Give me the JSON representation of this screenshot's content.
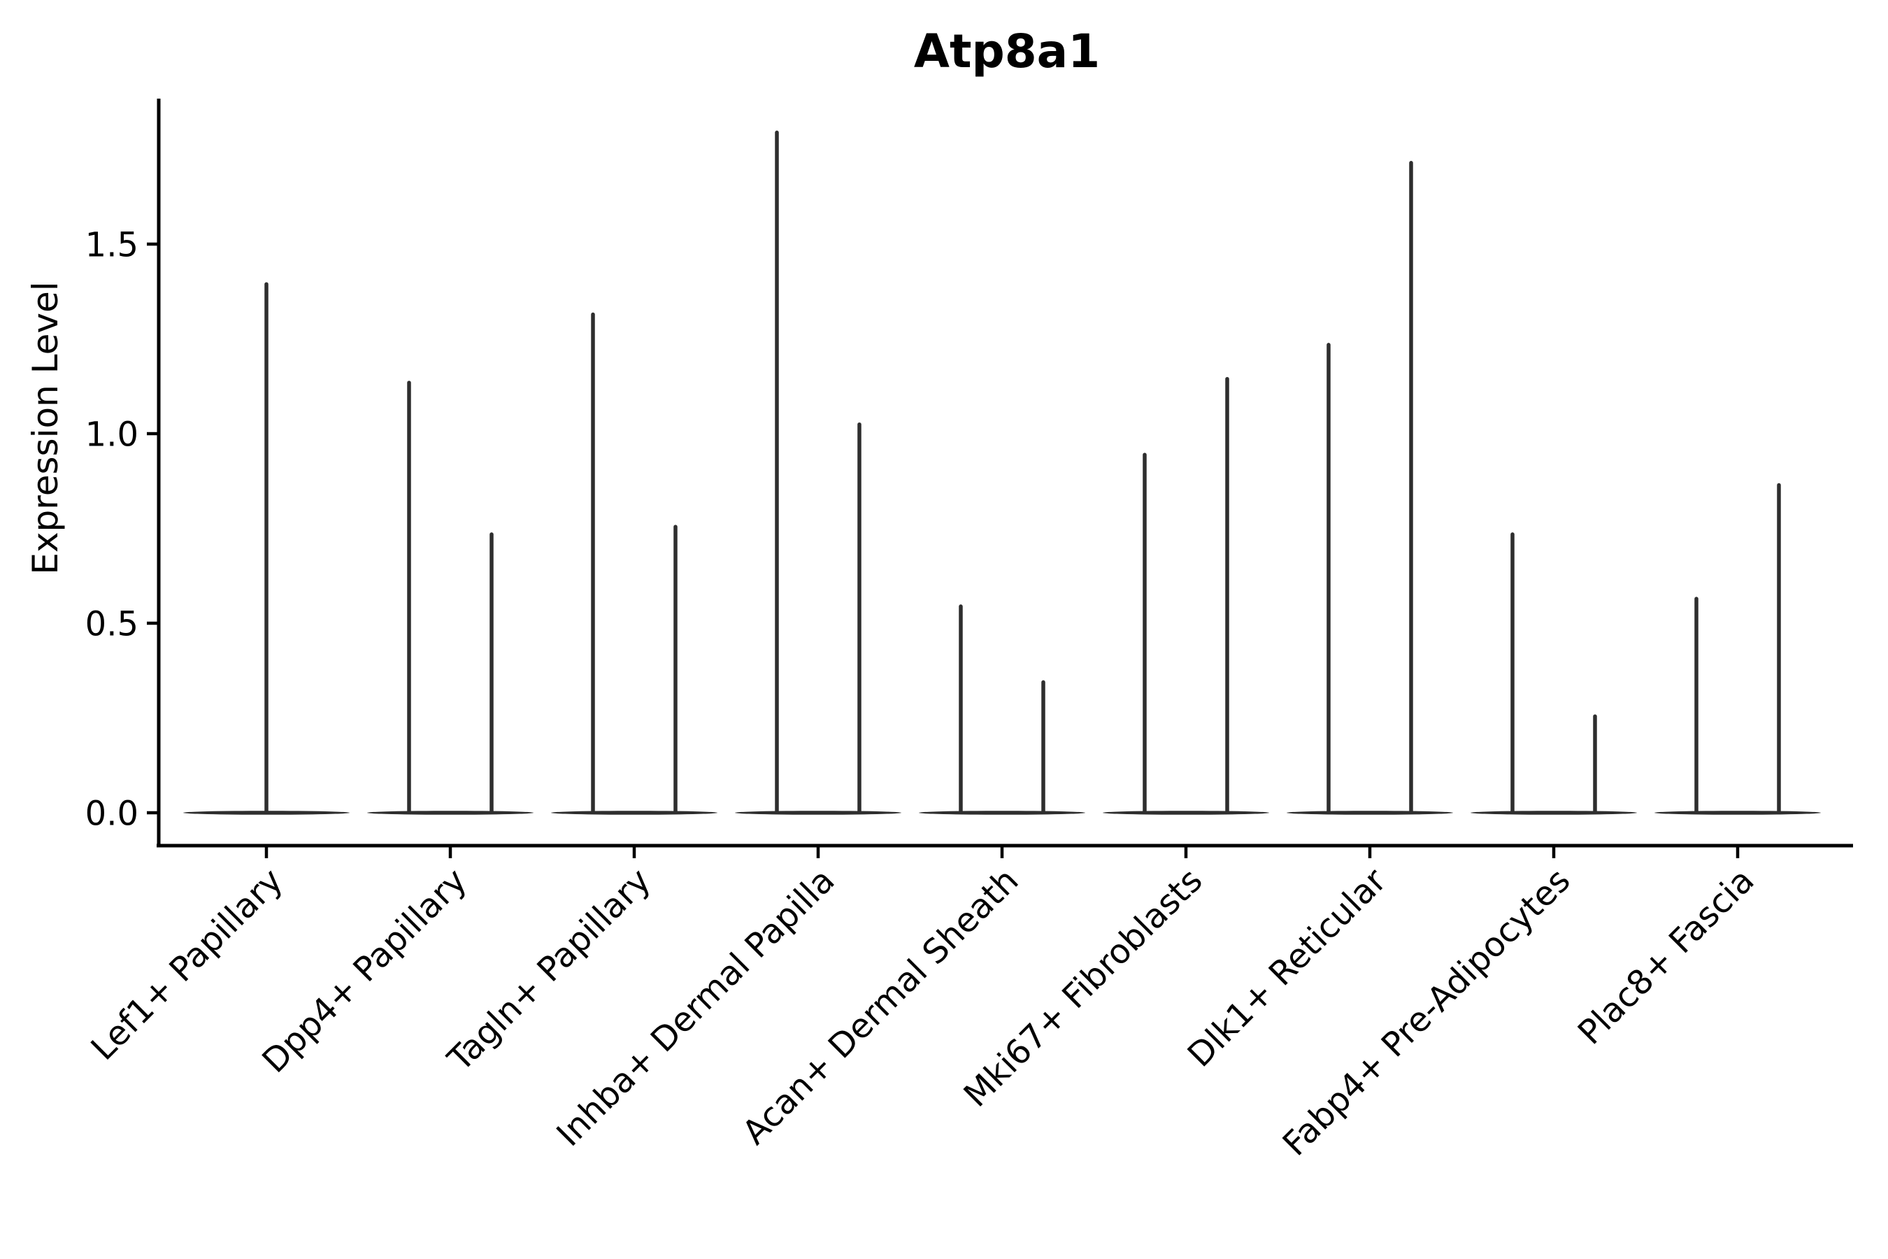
{
  "figure": {
    "background": "#ffffff"
  },
  "chart_data": {
    "type": "violin",
    "title": "Atp8a1",
    "xlabel": "",
    "ylabel": "Expression Level",
    "legend": "none",
    "grid": false,
    "ylim": [
      -0.09,
      1.88
    ],
    "yticks": [
      0,
      0.5,
      1,
      1.5
    ],
    "ytick_labels": [
      "0.0",
      "0.5",
      "1.0",
      "1.5"
    ],
    "categories": [
      "Lef1+ Papillary",
      "Dpp4+ Papillary",
      "Tagln+ Papillary",
      "Inhba+ Dermal Papilla",
      "Acan+ Dermal Sheath",
      "Mki67+ Fibroblasts",
      "Dlk1+ Reticular",
      "Fabp4+ Pre-Adipocytes",
      "Plac8+ Fascia"
    ],
    "violin_max_expression": [
      [
        1.4
      ],
      [
        1.14,
        0.74
      ],
      [
        1.32,
        0.76
      ],
      [
        1.8,
        1.03
      ],
      [
        0.55,
        0.35
      ],
      [
        0.95,
        1.15
      ],
      [
        1.24,
        1.72
      ],
      [
        0.74,
        0.26
      ],
      [
        0.57,
        0.87
      ]
    ],
    "density_bulk_value": 0,
    "colors": {
      "violin": "#2e2e2e",
      "axis": "#000000",
      "text": "#000000",
      "background": "#ffffff"
    }
  }
}
